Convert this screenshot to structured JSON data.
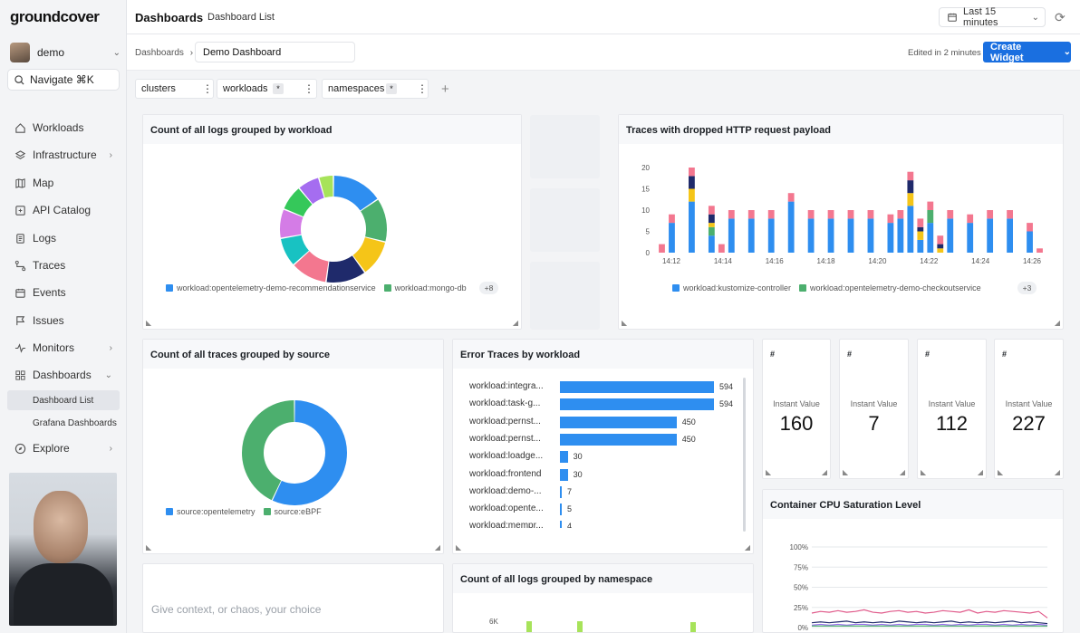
{
  "brand": "groundcover",
  "user": {
    "name": "demo"
  },
  "nav": {
    "search_label": "Navigate ⌘K",
    "items": [
      {
        "label": "Workloads"
      },
      {
        "label": "Infrastructure"
      },
      {
        "label": "Map"
      },
      {
        "label": "API Catalog"
      },
      {
        "label": "Logs"
      },
      {
        "label": "Traces"
      },
      {
        "label": "Events"
      },
      {
        "label": "Issues"
      },
      {
        "label": "Monitors"
      },
      {
        "label": "Dashboards"
      },
      {
        "label": "Explore"
      }
    ],
    "sub_items": [
      {
        "label": "Dashboard List"
      },
      {
        "label": "Grafana Dashboards"
      }
    ]
  },
  "topbar": {
    "title": "Dashboards",
    "tab": "Dashboard List",
    "time_range": "Last 15 minutes"
  },
  "toolbar": {
    "breadcrumb": "Dashboards",
    "dashboard_name": "Demo Dashboard",
    "edited": "Edited in 2 minutes",
    "create_label": "Create Widget"
  },
  "filters": [
    {
      "label": "clusters",
      "star": ""
    },
    {
      "label": "workloads",
      "star": "*"
    },
    {
      "label": "namespaces",
      "star": "*"
    }
  ],
  "colors": {
    "accent": "#1a6fe0",
    "blue": "#2e8ef0",
    "green": "#4caf6e"
  },
  "widgets": {
    "logs_by_workload": {
      "title": "Count of all logs grouped by workload",
      "legend": [
        "workload:opentelemetry-demo-recommendationservice",
        "workload:mongo-db"
      ],
      "more": "+8"
    },
    "dropped_http": {
      "title": "Traces with dropped HTTP request payload",
      "legend": [
        "workload:kustomize-controller",
        "workload:opentelemetry-demo-checkoutservice"
      ],
      "more": "+3"
    },
    "traces_by_source": {
      "title": "Count of all traces grouped by source",
      "legend": [
        "source:opentelemetry",
        "source:eBPF"
      ]
    },
    "error_traces": {
      "title": "Error Traces by workload",
      "rows": [
        {
          "label": "workload:integra...",
          "value": "594"
        },
        {
          "label": "workload:task-g...",
          "value": "594"
        },
        {
          "label": "workload:pernst...",
          "value": "450"
        },
        {
          "label": "workload:pernst...",
          "value": "450"
        },
        {
          "label": "workload:loadge...",
          "value": "30"
        },
        {
          "label": "workload:frontend",
          "value": "30"
        },
        {
          "label": "workload:demo-...",
          "value": "7"
        },
        {
          "label": "workload:opente...",
          "value": "5"
        },
        {
          "label": "workload:mempr...",
          "value": "4"
        }
      ]
    },
    "stats": [
      {
        "hash": "#",
        "label": "Instant Value",
        "value": "160"
      },
      {
        "hash": "#",
        "label": "Instant Value",
        "value": "7"
      },
      {
        "hash": "#",
        "label": "Instant Value",
        "value": "112"
      },
      {
        "hash": "#",
        "label": "Instant Value",
        "value": "227"
      }
    ],
    "cpu": {
      "title": "Container CPU Saturation Level"
    },
    "text_widget": {
      "placeholder": "Give context, or chaos, your choice"
    },
    "logs_by_namespace": {
      "title": "Count of all logs grouped by namespace",
      "y_tick": "6K"
    }
  },
  "chart_data": [
    {
      "type": "pie",
      "title": "Count of all logs grouped by workload",
      "categories": [
        "workload:opentelemetry-demo-recommendationservice",
        "workload:mongo-db",
        "",
        "",
        "",
        "",
        "",
        "",
        "",
        ""
      ],
      "values": [
        14,
        12,
        10,
        11,
        10,
        8,
        8,
        7,
        6,
        4
      ],
      "colors": [
        "#2e8ef0",
        "#4caf6e",
        "#f5c518",
        "#1f2a6b",
        "#f3778f",
        "#18c2c2",
        "#d47ce6",
        "#35c85a",
        "#a56df0",
        "#a7e35a"
      ]
    },
    {
      "type": "bar",
      "title": "Traces with dropped HTTP request payload",
      "x_ticks": [
        "14:12",
        "14:14",
        "14:16",
        "14:18",
        "14:20",
        "14:22",
        "14:24",
        "14:26"
      ],
      "ylim": [
        0,
        20
      ],
      "y_ticks": [
        0,
        5,
        10,
        15,
        20
      ],
      "series": [
        {
          "name": "workload:kustomize-controller",
          "color": "#2e8ef0",
          "values": [
            0,
            7,
            0,
            12,
            0,
            4,
            0,
            8,
            0,
            8,
            0,
            8,
            0,
            12,
            0,
            8,
            0,
            8,
            0,
            8,
            0,
            8,
            0,
            7,
            8,
            11,
            3,
            7,
            0,
            8,
            0,
            7,
            0,
            8,
            0,
            8,
            0,
            5,
            0
          ]
        },
        {
          "name": "workload:opentelemetry-demo-checkoutservice",
          "color": "#4caf6e",
          "values": [
            0,
            0,
            0,
            0,
            0,
            2,
            0,
            0,
            0,
            0,
            0,
            0,
            0,
            0,
            0,
            0,
            0,
            0,
            0,
            0,
            0,
            0,
            0,
            0,
            0,
            0,
            0,
            3,
            0,
            0,
            0,
            0,
            0,
            0,
            0,
            0,
            0,
            0,
            0
          ]
        },
        {
          "name": "",
          "color": "#f5c518",
          "values": [
            0,
            0,
            0,
            3,
            0,
            1,
            0,
            0,
            0,
            0,
            0,
            0,
            0,
            0,
            0,
            0,
            0,
            0,
            0,
            0,
            0,
            0,
            0,
            0,
            0,
            3,
            2,
            0,
            1,
            0,
            0,
            0,
            0,
            0,
            0,
            0,
            0,
            0,
            0
          ]
        },
        {
          "name": "",
          "color": "#1f2a6b",
          "values": [
            0,
            0,
            0,
            3,
            0,
            2,
            0,
            0,
            0,
            0,
            0,
            0,
            0,
            0,
            0,
            0,
            0,
            0,
            0,
            0,
            0,
            0,
            0,
            0,
            0,
            3,
            1,
            0,
            1,
            0,
            0,
            0,
            0,
            0,
            0,
            0,
            0,
            0,
            0
          ]
        },
        {
          "name": "",
          "color": "#f3778f",
          "values": [
            2,
            2,
            0,
            2,
            0,
            2,
            2,
            2,
            0,
            2,
            0,
            2,
            0,
            2,
            0,
            2,
            0,
            2,
            0,
            2,
            0,
            2,
            0,
            2,
            2,
            2,
            2,
            2,
            2,
            2,
            0,
            2,
            0,
            2,
            0,
            2,
            0,
            2,
            1
          ]
        }
      ]
    },
    {
      "type": "pie",
      "title": "Count of all traces grouped by source",
      "categories": [
        "source:opentelemetry",
        "source:eBPF"
      ],
      "values": [
        57,
        43
      ],
      "colors": [
        "#2e8ef0",
        "#4caf6e"
      ]
    },
    {
      "type": "bar",
      "title": "Error Traces by workload",
      "categories": [
        "workload:integra...",
        "workload:task-g...",
        "workload:pernst...",
        "workload:pernst...",
        "workload:loadge...",
        "workload:frontend",
        "workload:demo-...",
        "workload:opente...",
        "workload:mempr..."
      ],
      "values": [
        594,
        594,
        450,
        450,
        30,
        30,
        7,
        5,
        4
      ]
    },
    {
      "type": "line",
      "title": "Container CPU Saturation Level",
      "y_ticks": [
        "100%",
        "75%",
        "50%",
        "25%",
        "0%"
      ],
      "ylim": [
        0,
        100
      ],
      "series": [
        {
          "name": "",
          "color": "#e05a8a",
          "values": [
            18,
            20,
            19,
            21,
            19,
            20,
            22,
            19,
            18,
            20,
            21,
            19,
            20,
            18,
            19,
            21,
            20,
            19,
            22,
            18,
            20,
            19,
            21,
            20,
            19,
            18,
            20,
            12
          ]
        },
        {
          "name": "",
          "color": "#1f2a6b",
          "values": [
            6,
            7,
            6,
            7,
            8,
            6,
            7,
            6,
            7,
            6,
            8,
            7,
            6,
            7,
            6,
            7,
            8,
            6,
            7,
            6,
            7,
            6,
            7,
            8,
            6,
            7,
            6,
            5
          ]
        },
        {
          "name": "",
          "color": "#9b6ef0",
          "values": [
            3,
            4,
            3,
            4,
            3,
            4,
            4,
            3,
            4,
            3,
            4,
            3,
            4,
            4,
            3,
            4,
            3,
            4,
            3,
            4,
            4,
            3,
            4,
            3,
            4,
            3,
            4,
            3
          ]
        },
        {
          "name": "",
          "color": "#4caf6e",
          "values": [
            2,
            2,
            2,
            2,
            2,
            2,
            2,
            2,
            2,
            2,
            2,
            2,
            2,
            2,
            2,
            2,
            2,
            2,
            2,
            2,
            2,
            2,
            2,
            2,
            2,
            2,
            2,
            2
          ]
        }
      ]
    }
  ]
}
